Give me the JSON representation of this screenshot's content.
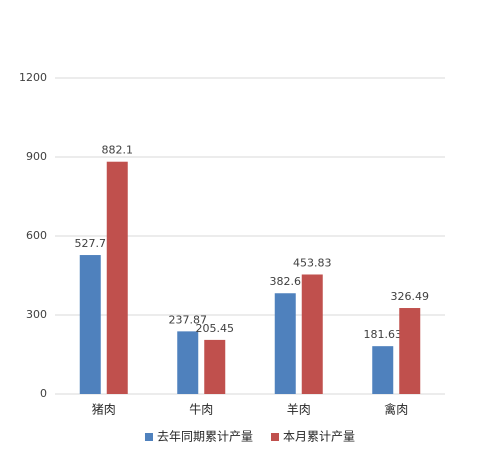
{
  "chart_data": {
    "type": "bar",
    "categories": [
      "猪肉",
      "牛肉",
      "羊肉",
      "禽肉"
    ],
    "series": [
      {
        "name": "去年同期累计产量",
        "color": "#4f81bd",
        "values": [
          527.7,
          237.87,
          382.6,
          181.63
        ]
      },
      {
        "name": "本月累计产量",
        "color": "#c0504d",
        "values": [
          882.1,
          205.45,
          453.83,
          326.49
        ]
      }
    ],
    "ylim": [
      0,
      1200
    ],
    "yticks": [
      0,
      300,
      600,
      900,
      1200
    ],
    "grid": true,
    "legend": "bottom"
  }
}
